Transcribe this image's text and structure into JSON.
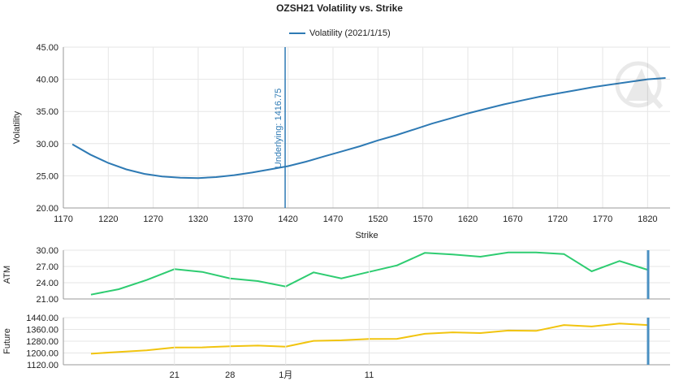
{
  "chart_data": [
    {
      "type": "line",
      "title": "OZSH21 Volatility vs. Strike",
      "legend": "Volatility (2021/1/15)",
      "xlabel": "Strike",
      "ylabel": "Volatility",
      "xlim": [
        1170,
        1845
      ],
      "ylim": [
        20,
        45
      ],
      "xticks": [
        "1170",
        "1220",
        "1270",
        "1320",
        "1370",
        "1420",
        "1470",
        "1520",
        "1570",
        "1620",
        "1670",
        "1720",
        "1770",
        "1820"
      ],
      "yticks": [
        "20.00",
        "25.00",
        "30.00",
        "35.00",
        "40.00",
        "45.00"
      ],
      "series": [
        {
          "name": "Volatility (2021/1/15)",
          "color": "#2e7ab4",
          "x": [
            1180,
            1200,
            1220,
            1240,
            1260,
            1280,
            1300,
            1320,
            1340,
            1360,
            1380,
            1400,
            1420,
            1440,
            1460,
            1480,
            1500,
            1520,
            1540,
            1560,
            1580,
            1600,
            1620,
            1640,
            1660,
            1680,
            1700,
            1720,
            1740,
            1760,
            1780,
            1800,
            1820,
            1840
          ],
          "y": [
            29.9,
            28.3,
            27.0,
            26.0,
            25.3,
            24.9,
            24.7,
            24.65,
            24.8,
            25.1,
            25.5,
            26.0,
            26.5,
            27.2,
            28.0,
            28.8,
            29.6,
            30.5,
            31.3,
            32.2,
            33.1,
            33.9,
            34.7,
            35.4,
            36.1,
            36.7,
            37.3,
            37.8,
            38.3,
            38.8,
            39.2,
            39.6,
            40.0,
            40.2
          ]
        }
      ],
      "annotation": {
        "label": "Underlying: 1416.75",
        "x": 1416.75,
        "color": "#2e7ab4"
      }
    },
    {
      "type": "line",
      "ylabel": "ATM",
      "ylim": [
        21,
        30
      ],
      "yticks": [
        "21.00",
        "24.00",
        "27.00",
        "30.00"
      ],
      "series": [
        {
          "name": "ATM",
          "color": "#2ecc71",
          "values": [
            21.8,
            22.8,
            24.5,
            26.5,
            26.0,
            24.8,
            24.3,
            23.3,
            25.9,
            24.8,
            26.0,
            27.2,
            29.5,
            29.2,
            28.8,
            29.6,
            29.6,
            29.3,
            26.1,
            28.0,
            26.4
          ]
        }
      ]
    },
    {
      "type": "line",
      "ylabel": "Future",
      "ylim": [
        1120,
        1440
      ],
      "yticks": [
        "1120.00",
        "1200.00",
        "1280.00",
        "1360.00",
        "1440.00"
      ],
      "series": [
        {
          "name": "Future",
          "color": "#f1c40f",
          "values": [
            1195,
            1207,
            1218,
            1237,
            1238,
            1245,
            1250,
            1243,
            1282,
            1286,
            1295,
            1296,
            1330,
            1340,
            1335,
            1352,
            1350,
            1390,
            1380,
            1400,
            1390
          ]
        }
      ],
      "xticks": [
        "21",
        "28",
        "1月",
        "11"
      ],
      "xtick_positions": [
        3,
        5,
        7,
        10
      ]
    }
  ]
}
